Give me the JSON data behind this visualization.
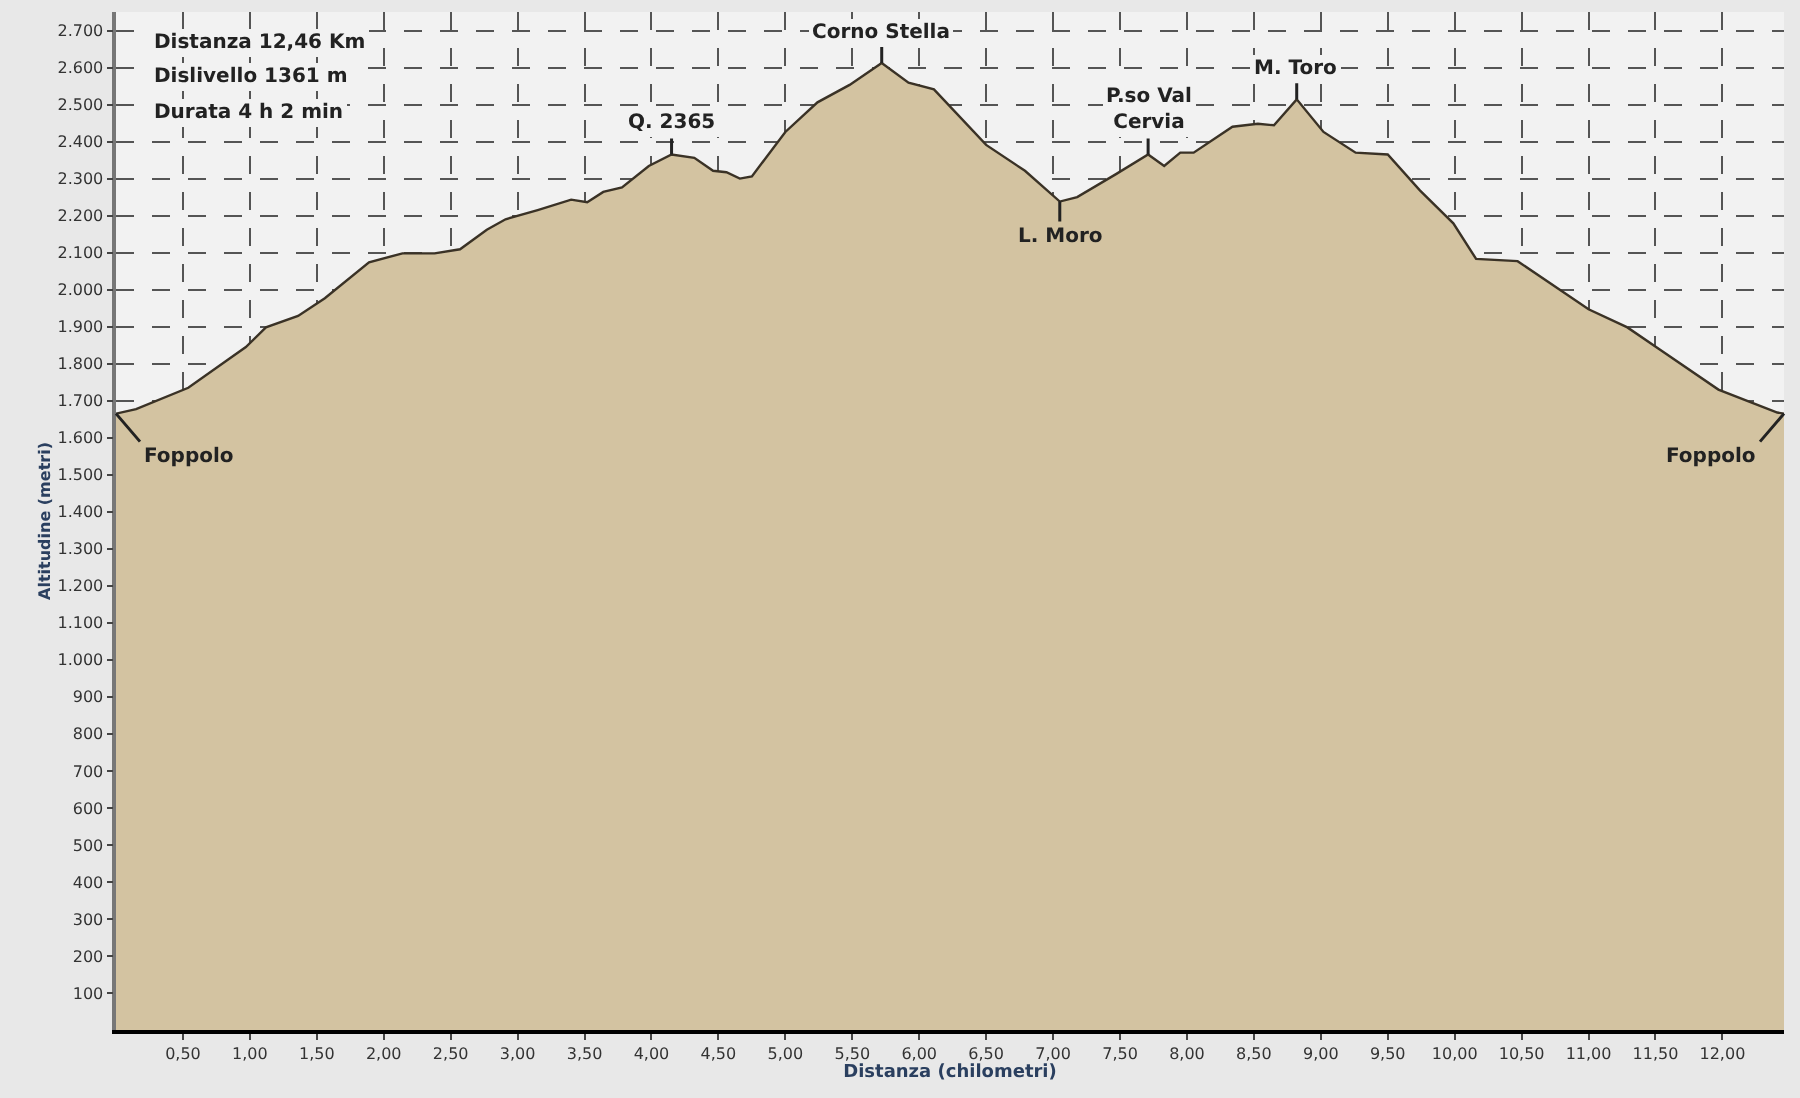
{
  "chart_data": {
    "type": "area",
    "xlabel": "Distanza (chilometri)",
    "ylabel": "Altitudine (metri)",
    "annotations": [
      "Distanza 12,46 Km",
      "Dislivello 1361 m",
      "Durata 4 h 2 min",
      {
        "text": "Foppolo",
        "x": 0,
        "y": 1665
      },
      {
        "text": "Q. 2365",
        "x": 4.15,
        "y": 2365
      },
      {
        "text": "Corno Stella",
        "x": 5.72,
        "y": 2612
      },
      {
        "text": "L. Moro",
        "x": 7.05,
        "y": 2238
      },
      {
        "text": "P.so Val\nCervia",
        "x": 7.71,
        "y": 2365
      },
      {
        "text": "M. Toro",
        "x": 8.82,
        "y": 2514
      },
      {
        "text": "Foppolo",
        "x": 12.46,
        "y": 1665
      }
    ],
    "series": [
      {
        "color": "#d3c3a1",
        "x": [
          0,
          0.15,
          0.54,
          0.83,
          0.97,
          1.12,
          1.36,
          1.56,
          1.89,
          2.14,
          2.38,
          2.57,
          2.77,
          2.91,
          3.15,
          3.4,
          3.52,
          3.64,
          3.78,
          3.98,
          4.15,
          4.32,
          4.46,
          4.56,
          4.66,
          4.75,
          5.0,
          5.24,
          5.48,
          5.72,
          5.92,
          6.11,
          6.5,
          6.79,
          7.05,
          7.18,
          7.47,
          7.71,
          7.83,
          7.95,
          8.05,
          8.34,
          8.53,
          8.65,
          8.82,
          9.02,
          9.26,
          9.5,
          9.74,
          9.99,
          10.16,
          10.47,
          11.0,
          11.29,
          11.54,
          11.97,
          12.41,
          12.46
        ],
        "values": [
          1665,
          1677,
          1735,
          1809,
          1845,
          1898,
          1929,
          1977,
          2074,
          2098,
          2098,
          2109,
          2162,
          2190,
          2215,
          2243,
          2236,
          2264,
          2276,
          2334,
          2365,
          2356,
          2321,
          2317,
          2300,
          2306,
          2426,
          2506,
          2553,
          2612,
          2559,
          2541,
          2391,
          2321,
          2238,
          2250,
          2312,
          2365,
          2334,
          2370,
          2370,
          2440,
          2448,
          2444,
          2514,
          2426,
          2370,
          2365,
          2268,
          2179,
          2083,
          2077,
          1947,
          1898,
          1836,
          1730,
          1668,
          1665
        ]
      }
    ],
    "xlim": [
      0,
      12.46
    ],
    "xticks": [
      {
        "value": 0.5,
        "label": "0,50"
      },
      {
        "value": 1,
        "label": "1,00"
      },
      {
        "value": 1.5,
        "label": "1,50"
      },
      {
        "value": 2,
        "label": "2,00"
      },
      {
        "value": 2.5,
        "label": "2,50"
      },
      {
        "value": 3,
        "label": "3,00"
      },
      {
        "value": 3.5,
        "label": "3,50"
      },
      {
        "value": 4,
        "label": "4,00"
      },
      {
        "value": 4.5,
        "label": "4,50"
      },
      {
        "value": 5,
        "label": "5,00"
      },
      {
        "value": 5.5,
        "label": "5,50"
      },
      {
        "value": 6,
        "label": "6,00"
      },
      {
        "value": 6.5,
        "label": "6,50"
      },
      {
        "value": 7,
        "label": "7,00"
      },
      {
        "value": 7.5,
        "label": "7,50"
      },
      {
        "value": 8,
        "label": "8,00"
      },
      {
        "value": 8.5,
        "label": "8,50"
      },
      {
        "value": 9,
        "label": "9,00"
      },
      {
        "value": 9.5,
        "label": "9,50"
      },
      {
        "value": 10,
        "label": "10,00"
      },
      {
        "value": 10.5,
        "label": "10,50"
      },
      {
        "value": 11,
        "label": "11,00"
      },
      {
        "value": 11.5,
        "label": "11,50"
      },
      {
        "value": 12,
        "label": "12,00"
      }
    ],
    "ylim": [
      0,
      2750
    ],
    "yticks": [
      100,
      200,
      300,
      400,
      500,
      600,
      700,
      800,
      900,
      {
        "value": 1000,
        "label": "1.000"
      },
      {
        "value": 1100,
        "label": "1.100"
      },
      {
        "value": 1200,
        "label": "1.200"
      },
      {
        "value": 1300,
        "label": "1.300"
      },
      {
        "value": 1400,
        "label": "1.400"
      },
      {
        "value": 1500,
        "label": "1.500"
      },
      {
        "value": 1600,
        "label": "1.600"
      },
      {
        "value": 1700,
        "label": "1.700"
      },
      {
        "value": 1800,
        "label": "1.800"
      },
      {
        "value": 1900,
        "label": "1.900"
      },
      {
        "value": 2000,
        "label": "2.000"
      },
      {
        "value": 2100,
        "label": "2.100"
      },
      {
        "value": 2200,
        "label": "2.200"
      },
      {
        "value": 2300,
        "label": "2.300"
      },
      {
        "value": 2400,
        "label": "2.400"
      },
      {
        "value": 2500,
        "label": "2.500"
      },
      {
        "value": 2600,
        "label": "2.600"
      },
      {
        "value": 2700,
        "label": "2.700"
      }
    ],
    "grid": true,
    "line_style": "solid",
    "marker": "none"
  }
}
